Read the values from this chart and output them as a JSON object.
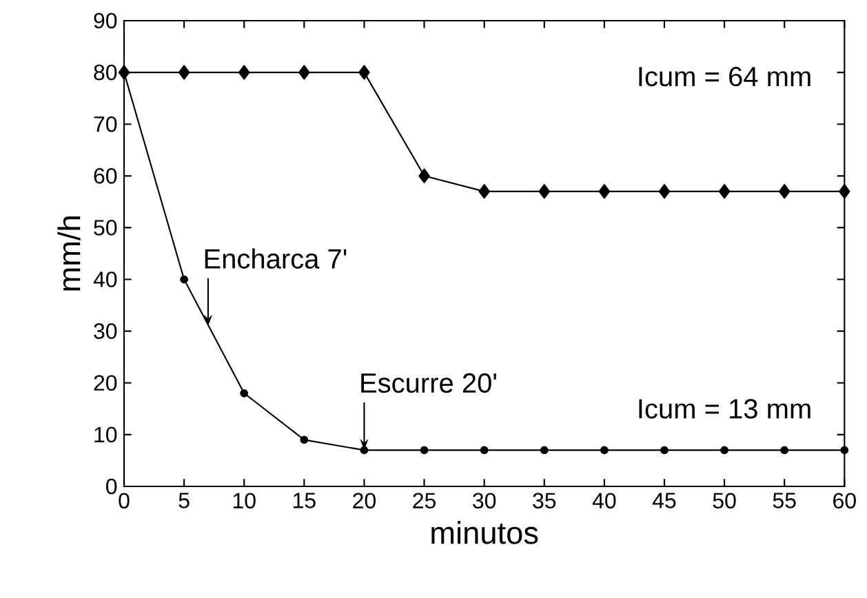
{
  "chart_data": {
    "type": "line",
    "xlabel": "minutos",
    "ylabel": "mm/h",
    "x": [
      0,
      5,
      10,
      15,
      20,
      25,
      30,
      35,
      40,
      45,
      50,
      55,
      60
    ],
    "series": [
      {
        "color": "#000000",
        "marker": "diamond",
        "values": [
          80,
          80,
          80,
          80,
          80,
          60,
          57,
          57,
          57,
          57,
          57,
          57,
          57
        ]
      },
      {
        "color": "#000000",
        "marker": "circle",
        "values": [
          80,
          40,
          18,
          9,
          7,
          7,
          7,
          7,
          7,
          7,
          7,
          7,
          7
        ]
      }
    ],
    "xlim": [
      0,
      60
    ],
    "xticks": [
      0,
      5,
      10,
      15,
      20,
      25,
      30,
      35,
      40,
      45,
      50,
      55,
      60
    ],
    "ylim": [
      0,
      90
    ],
    "yticks": [
      0,
      10,
      20,
      30,
      40,
      50,
      60,
      70,
      80,
      90
    ],
    "annotations": [
      "Icum = 64 mm",
      "Icum = 13 mm",
      {
        "text": "Encharca 7'",
        "x": 7,
        "y": 31
      },
      {
        "text": "Escurre 20'",
        "x": 20,
        "y": 7
      }
    ]
  }
}
